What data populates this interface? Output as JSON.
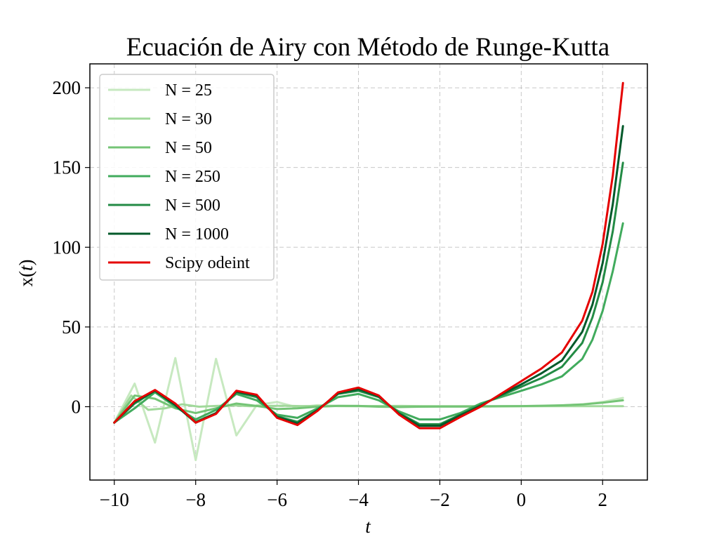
{
  "chart_data": {
    "type": "line",
    "title": "Ecuación de Airy con Método de Runge-Kutta",
    "xlabel": "t",
    "ylabel_parts": [
      "x(",
      "t",
      ")"
    ],
    "xlim": [
      -10.6,
      3.1
    ],
    "ylim": [
      -46,
      215
    ],
    "xticks": [
      -10,
      -8,
      -6,
      -4,
      -2,
      0,
      2
    ],
    "xtick_labels": [
      "−10",
      "−8",
      "−6",
      "−4",
      "−2",
      "0",
      "2"
    ],
    "yticks": [
      0,
      50,
      100,
      150,
      200
    ],
    "ytick_labels": [
      "0",
      "50",
      "100",
      "150",
      "200"
    ],
    "grid": true,
    "legend_position": "upper-left",
    "series": [
      {
        "name": "N = 25",
        "color": "#c7e9c0",
        "x": [
          -10,
          -9.5,
          -9,
          -8.5,
          -8,
          -7.5,
          -7,
          -6.5,
          -6,
          -5.5,
          -5,
          -4.5,
          -4,
          -3.5,
          -3,
          -2.5,
          -2,
          -1.5,
          -1,
          -0.5,
          0,
          0.5,
          1,
          1.5,
          2,
          2.5
        ],
        "y": [
          -10,
          14.5,
          -22.5,
          30.5,
          -33.5,
          30,
          -18,
          1,
          3,
          -0.5,
          1,
          0.3,
          0.2,
          0.1,
          0,
          0,
          0,
          0,
          0,
          0.1,
          0.2,
          0.4,
          0.8,
          1.5,
          3,
          5.5
        ]
      },
      {
        "name": "N = 30",
        "color": "#a1d99b",
        "x": [
          -10,
          -9.5833,
          -9.1667,
          -8.75,
          -8.3333,
          -7.9167,
          -7.5,
          -7.0833,
          -6.6667,
          -6.25,
          -5.8333,
          -5.4167,
          -5,
          -4.5833,
          -4.1667,
          -3.75,
          -3.3333,
          -2.9167,
          -2.5,
          -2.0833,
          -1.6667,
          -1.25,
          -0.8333,
          -0.4167,
          0,
          0.4167,
          0.8333,
          1.25,
          1.6667,
          2.0833,
          2.5
        ],
        "y": [
          -10,
          7,
          -2,
          -1,
          1.5,
          0,
          0.5,
          0.8,
          0.3,
          0.5,
          0.6,
          0.4,
          0.5,
          0.6,
          0.5,
          0.4,
          0.5,
          0.5,
          0.4,
          0.3,
          0.3,
          0.3,
          0.3,
          0.3,
          0.3,
          0.3,
          0.3,
          0.3,
          0.3,
          0.3,
          0.3
        ]
      },
      {
        "name": "N = 50",
        "color": "#74c476",
        "x": [
          -10,
          -9.5,
          -9,
          -8.5,
          -8,
          -7.5,
          -7,
          -6.5,
          -6,
          -5.5,
          -5,
          -4.5,
          -4,
          -3.5,
          -3,
          -2.5,
          -2,
          -1.5,
          -1,
          -0.5,
          0,
          0.5,
          1,
          1.5,
          2,
          2.5
        ],
        "y": [
          -10,
          7,
          5,
          -1,
          -4,
          -1,
          2,
          0.5,
          -1.5,
          -1,
          0,
          0.5,
          0.5,
          0,
          -0.2,
          0,
          0.1,
          0.1,
          0.2,
          0.3,
          0.4,
          0.6,
          0.9,
          1.4,
          2.5,
          4
        ]
      },
      {
        "name": "N = 250",
        "color": "#41ab5d",
        "x": [
          -10,
          -9.5,
          -9,
          -8.5,
          -8,
          -7.5,
          -7,
          -6.5,
          -6,
          -5.5,
          -5,
          -4.5,
          -4,
          -3.5,
          -3,
          -2.5,
          -2,
          -1.5,
          -1,
          -0.5,
          0,
          0.5,
          1,
          1.5,
          1.75,
          2,
          2.25,
          2.5
        ],
        "y": [
          -10,
          -1,
          9,
          0,
          -8,
          -2,
          8,
          4,
          -5,
          -7,
          -1,
          6,
          8,
          4,
          -3,
          -8,
          -8,
          -4,
          2,
          6,
          10,
          14,
          19,
          30,
          42,
          60,
          85,
          115
        ]
      },
      {
        "name": "N = 500",
        "color": "#238b45",
        "x": [
          -10,
          -9.5,
          -9,
          -8.5,
          -8,
          -7.5,
          -7,
          -6.5,
          -6,
          -5.5,
          -5,
          -4.5,
          -4,
          -3.5,
          -3,
          -2.5,
          -2,
          -1.5,
          -1,
          -0.5,
          0,
          0.5,
          1,
          1.5,
          1.75,
          2,
          2.25,
          2.5
        ],
        "y": [
          -10,
          2,
          10,
          1,
          -9.5,
          -4,
          9,
          6,
          -6,
          -9.5,
          -2,
          8,
          10,
          6,
          -4,
          -11,
          -11,
          -5,
          1,
          7,
          12.5,
          18,
          25,
          40,
          56,
          78,
          110,
          153
        ]
      },
      {
        "name": "N = 1000",
        "color": "#00592a",
        "x": [
          -10,
          -9.5,
          -9,
          -8.5,
          -8,
          -7.5,
          -7,
          -6.5,
          -6,
          -5.5,
          -5,
          -4.5,
          -4,
          -3.5,
          -3,
          -2.5,
          -2,
          -1.5,
          -1,
          -0.5,
          0,
          0.5,
          1,
          1.5,
          1.75,
          2,
          2.25,
          2.5
        ],
        "y": [
          -10,
          3,
          10,
          1,
          -10,
          -4,
          9.5,
          7,
          -6.5,
          -10.5,
          -2,
          8.5,
          11,
          6.5,
          -4.5,
          -12,
          -12,
          -5.5,
          0.5,
          7.5,
          14,
          21,
          29,
          47,
          64,
          90,
          127,
          176
        ]
      },
      {
        "name": "Scipy odeint",
        "color": "#e50000",
        "x": [
          -10,
          -9.5,
          -9,
          -8.5,
          -8,
          -7.5,
          -7,
          -6.5,
          -6,
          -5.5,
          -5,
          -4.5,
          -4,
          -3.5,
          -3,
          -2.5,
          -2,
          -1.5,
          -1,
          -0.5,
          0,
          0.5,
          1,
          1.5,
          1.75,
          2,
          2.25,
          2.5
        ],
        "y": [
          -10,
          3.5,
          10.5,
          2,
          -10,
          -4.5,
          10,
          7.5,
          -7,
          -11.5,
          -2.5,
          9,
          12,
          7,
          -5,
          -13.5,
          -13.5,
          -6.5,
          0,
          8,
          16,
          24,
          34,
          54,
          72,
          102,
          145,
          203
        ]
      }
    ]
  }
}
